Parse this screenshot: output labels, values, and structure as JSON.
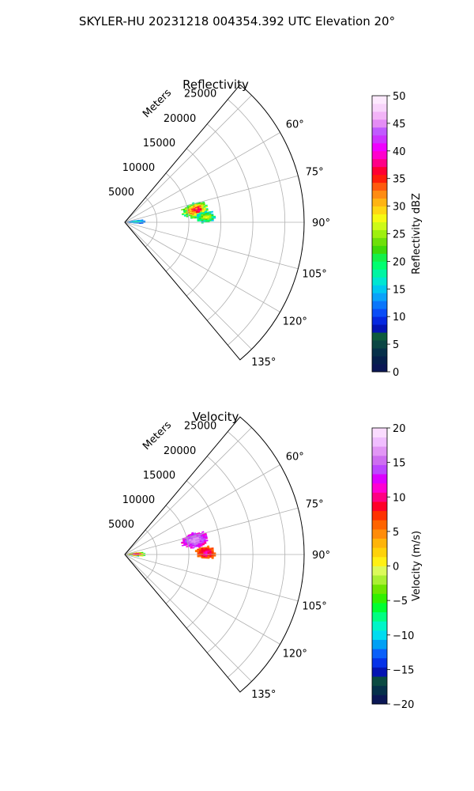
{
  "figure": {
    "suptitle": "SKYLER-HU  20231218  004354.392 UTC Elevation 20°"
  },
  "chart_data": [
    {
      "type": "polar-sector (PPI radar)",
      "title": "Reflectivity",
      "radial_label": "Meters",
      "angle_range_deg": [
        40,
        140
      ],
      "r_range_m": [
        0,
        28000
      ],
      "radial_ticks": [
        5000,
        10000,
        15000,
        20000,
        25000
      ],
      "angular_ticks_deg": [
        60,
        75,
        90,
        105,
        120,
        135
      ],
      "grid": true,
      "colorbar": {
        "label": "Reflectivity dBZ",
        "range": [
          0,
          50
        ],
        "ticks": [
          0,
          5,
          10,
          15,
          20,
          25,
          30,
          35,
          40,
          45,
          50
        ],
        "colors": [
          "#0b1755",
          "#06204c",
          "#06304a",
          "#0a4644",
          "#0d5a3d",
          "#0414b2",
          "#0628e0",
          "#0a4df7",
          "#0a76fb",
          "#0aa2fa",
          "#00c8f0",
          "#00e6d2",
          "#00f5a3",
          "#00ff70",
          "#14f04a",
          "#3ed90a",
          "#6ee00a",
          "#9ef00f",
          "#cdfa18",
          "#f6fa12",
          "#ffd712",
          "#ffb412",
          "#ff8c12",
          "#ff5a0e",
          "#ff1e0a",
          "#ff0032",
          "#ff0087",
          "#ff00cd",
          "#f000ff",
          "#cd32ff",
          "#c05aff",
          "#e48cf5",
          "#f2b4f7",
          "#f8d4fb",
          "#fde9fe"
        ]
      },
      "data": {
        "description": "Reflectivity echoes along the beam, mostly 10–40 dBZ",
        "echo_regions": [
          {
            "azimuth_deg": [
              74,
              86
            ],
            "range_m": [
              9000,
              13000
            ],
            "dbz": [
              15,
              38
            ]
          },
          {
            "azimuth_deg": [
              82,
              90
            ],
            "range_m": [
              11000,
              14000
            ],
            "dbz": [
              12,
              28
            ]
          },
          {
            "azimuth_deg": [
              80,
              95
            ],
            "range_m": [
              0,
              3000
            ],
            "dbz": [
              10,
              18
            ]
          }
        ]
      }
    },
    {
      "type": "polar-sector (PPI radar)",
      "title": "Velocity",
      "radial_label": "Meters",
      "angle_range_deg": [
        40,
        140
      ],
      "r_range_m": [
        0,
        28000
      ],
      "radial_ticks": [
        5000,
        10000,
        15000,
        20000,
        25000
      ],
      "angular_ticks_deg": [
        60,
        75,
        90,
        105,
        120,
        135
      ],
      "grid": true,
      "colorbar": {
        "label": "Velocity (m/s)",
        "range": [
          -20,
          20
        ],
        "ticks": [
          -20,
          -15,
          -10,
          -5,
          0,
          5,
          10,
          15,
          20
        ],
        "colors": [
          "#0b1755",
          "#05304a",
          "#0a4a42",
          "#0414b2",
          "#0632e8",
          "#0a60fa",
          "#00a0f5",
          "#00dcf0",
          "#00f5c8",
          "#00ff82",
          "#00ff32",
          "#32f000",
          "#6ee600",
          "#aaf032",
          "#dcfa5a",
          "#fff014",
          "#ffd20a",
          "#ffb40a",
          "#ff8c0a",
          "#ff6400",
          "#ff3200",
          "#ff0028",
          "#ff0082",
          "#ff00d2",
          "#dc00ff",
          "#bc46ff",
          "#cd6ef0",
          "#e196f5",
          "#f0beff",
          "#fadcff"
        ]
      },
      "data": {
        "description": "Radial velocity echoes; magenta ~10–15 m/s and red/orange ~5–12 m/s",
        "echo_regions": [
          {
            "azimuth_deg": [
              72,
              84
            ],
            "range_m": [
              9000,
              13000
            ],
            "velocity_ms": [
              10,
              17
            ]
          },
          {
            "azimuth_deg": [
              84,
              93
            ],
            "range_m": [
              11000,
              14000
            ],
            "velocity_ms": [
              4,
              11
            ]
          },
          {
            "azimuth_deg": [
              80,
              98
            ],
            "range_m": [
              0,
              3000
            ],
            "velocity_ms": [
              -10,
              15
            ]
          }
        ]
      }
    }
  ]
}
